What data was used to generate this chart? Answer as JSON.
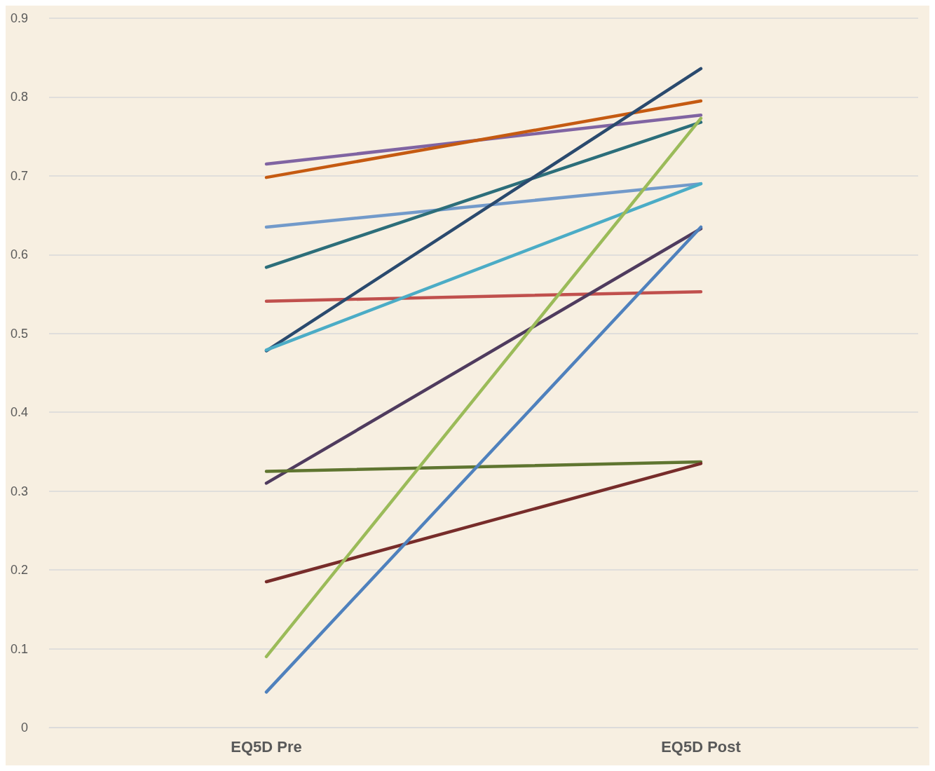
{
  "chart_data": {
    "type": "line",
    "categories": [
      "EQ5D Pre",
      "EQ5D Post"
    ],
    "series": [
      {
        "color": "#8064a2",
        "values": [
          0.715,
          0.777
        ]
      },
      {
        "color": "#c55a11",
        "values": [
          0.698,
          0.795
        ]
      },
      {
        "color": "#729aca",
        "values": [
          0.635,
          0.69
        ]
      },
      {
        "color": "#2c6e7a",
        "values": [
          0.584,
          0.768
        ]
      },
      {
        "color": "#c0504d",
        "values": [
          0.541,
          0.553
        ]
      },
      {
        "color": "#2a4a6e",
        "values": [
          0.478,
          0.836
        ]
      },
      {
        "color": "#4bacc6",
        "values": [
          0.479,
          0.69
        ]
      },
      {
        "color": "#4f3b5e",
        "values": [
          0.31,
          0.633
        ]
      },
      {
        "color": "#5f7530",
        "values": [
          0.325,
          0.337
        ]
      },
      {
        "color": "#772c2a",
        "values": [
          0.185,
          0.335
        ]
      },
      {
        "color": "#9bbb59",
        "values": [
          0.09,
          0.773
        ]
      },
      {
        "color": "#4f81bd",
        "values": [
          0.045,
          0.635
        ]
      }
    ],
    "ylim": [
      0,
      0.9
    ],
    "yticks": [
      0,
      0.1,
      0.2,
      0.3,
      0.4,
      0.5,
      0.6,
      0.7,
      0.8,
      0.9
    ],
    "grid": "y",
    "marker": "none",
    "line_style": "solid"
  }
}
